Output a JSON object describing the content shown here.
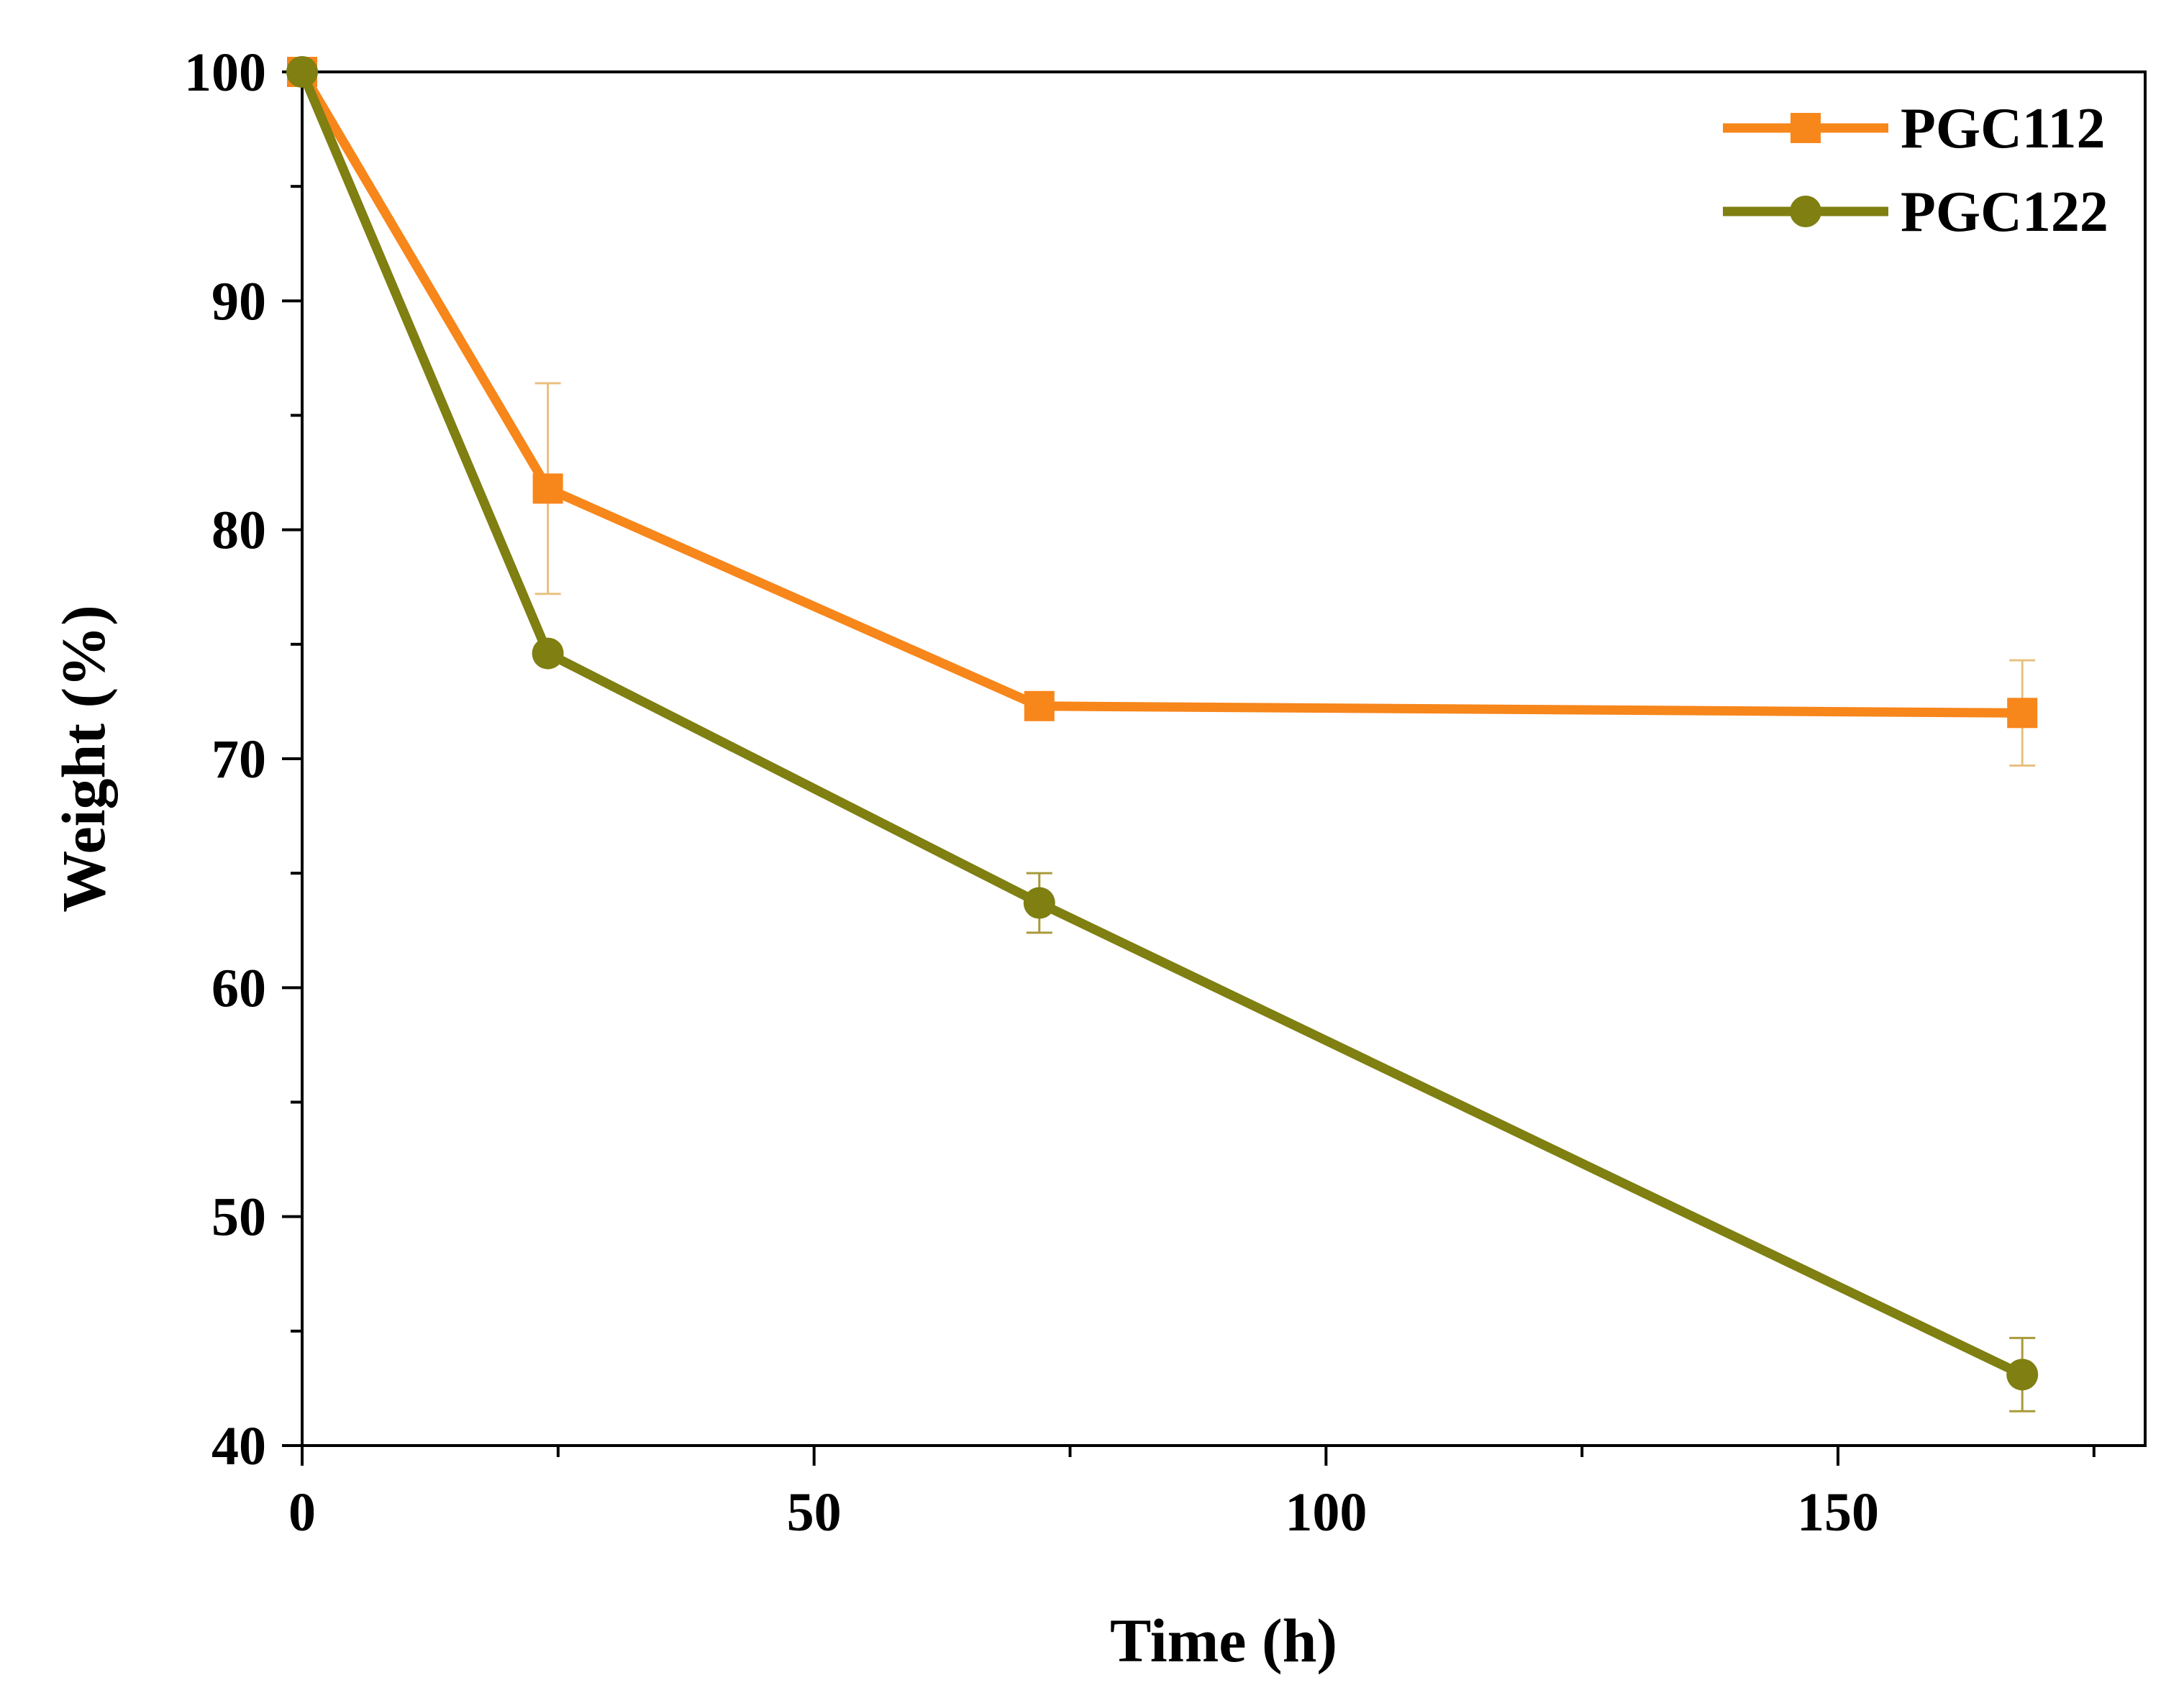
{
  "chart_data": {
    "type": "line",
    "title": "",
    "xlabel": "Time (h)",
    "ylabel": "Weight (%)",
    "xlim": [
      0,
      180
    ],
    "ylim": [
      40,
      100
    ],
    "xticks": [
      0,
      50,
      100,
      150
    ],
    "yticks": [
      40,
      50,
      60,
      70,
      80,
      90,
      100
    ],
    "x_minor_ticks": [
      25,
      75,
      125,
      175
    ],
    "y_minor_ticks": [
      45,
      55,
      65,
      75,
      85,
      95
    ],
    "grid": false,
    "legend_position": "top-right",
    "series": [
      {
        "name": "PGC112",
        "color": "#F7861B",
        "marker": "square",
        "x": [
          0,
          24,
          72,
          168
        ],
        "y": [
          100,
          81.8,
          72.3,
          72.0
        ],
        "error": [
          0,
          4.6,
          0,
          2.3
        ],
        "error_color": "#E8C080"
      },
      {
        "name": "PGC122",
        "color": "#7F7F12",
        "marker": "circle",
        "x": [
          0,
          24,
          72,
          168
        ],
        "y": [
          100,
          74.6,
          63.7,
          43.1
        ],
        "error": [
          0,
          0,
          1.3,
          1.6
        ],
        "error_color": "#A99A3A"
      }
    ]
  }
}
